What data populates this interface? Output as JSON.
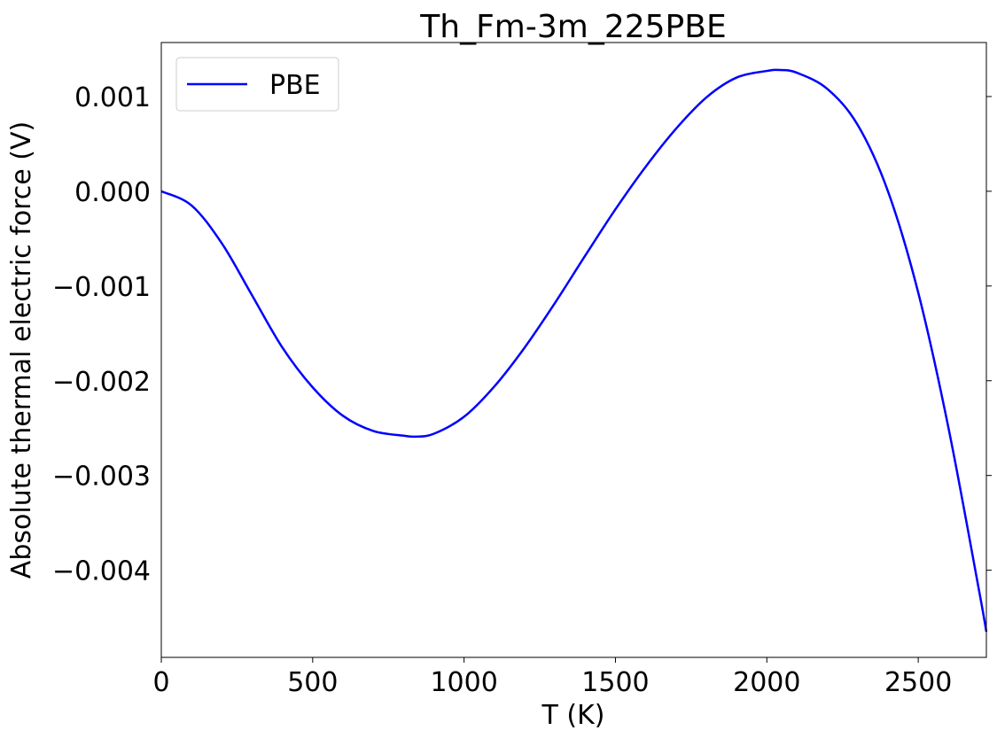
{
  "chart_data": {
    "type": "line",
    "title": "Th_Fm-3m_225PBE",
    "xlabel": "T (K)",
    "ylabel": "Absolute thermal electric force (V)",
    "xlim": [
      0,
      2725
    ],
    "ylim": [
      -0.00492,
      0.00157
    ],
    "xticks": [
      0,
      500,
      1000,
      1500,
      2000,
      2500
    ],
    "xtick_labels": [
      "0",
      "500",
      "1000",
      "1500",
      "2000",
      "2500"
    ],
    "yticks": [
      0.001,
      0.0,
      -0.001,
      -0.002,
      -0.003,
      -0.004
    ],
    "ytick_labels": [
      "0.001",
      "0.000",
      "−0.001",
      "−0.002",
      "−0.003",
      "−0.004"
    ],
    "grid": false,
    "legend_position": "upper left",
    "series": [
      {
        "name": "PBE",
        "color": "#0000ff",
        "x": [
          0,
          100,
          200,
          300,
          400,
          500,
          600,
          700,
          800,
          840,
          900,
          1000,
          1100,
          1200,
          1300,
          1400,
          1500,
          1600,
          1700,
          1800,
          1900,
          2000,
          2045,
          2100,
          2200,
          2300,
          2400,
          2500,
          2600,
          2700,
          2725
        ],
        "y": [
          0.0,
          -0.00015,
          -0.00055,
          -0.0011,
          -0.00165,
          -0.00207,
          -0.00237,
          -0.00253,
          -0.00258,
          -0.00259,
          -0.00256,
          -0.00238,
          -0.00206,
          -0.00165,
          -0.00118,
          -0.00068,
          -0.00019,
          0.00026,
          0.00066,
          0.00099,
          0.0012,
          0.00127,
          0.00128,
          0.00125,
          0.00108,
          0.0007,
          0.0,
          -0.00107,
          -0.0025,
          -0.0042,
          -0.00465
        ]
      }
    ]
  }
}
